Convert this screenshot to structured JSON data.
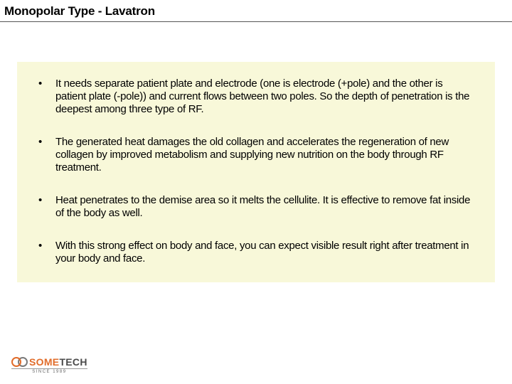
{
  "title": "Monopolar Type - Lavatron",
  "content_box": {
    "background_color": "#f8f8d9"
  },
  "bullets": [
    {
      "text": "It needs separate patient plate and electrode (one is electrode (+pole) and the other is patient plate (-pole)) and current flows between two poles. So the depth of penetration is the deepest among three type of RF."
    },
    {
      "text": "The generated heat damages the old collagen and accelerates the regeneration of new collagen by improved metabolism and supplying new nutrition on the body through RF treatment."
    },
    {
      "text": "Heat penetrates to the demise area so it melts the cellulite. It is effective to remove fat inside of the body as well."
    },
    {
      "text": "With this strong effect on body and face, you can expect visible result right after treatment in your body and face."
    }
  ],
  "logo": {
    "brand_some": "SOME",
    "brand_tech": "TECH",
    "tagline": "SINCE 1989",
    "ring1_color": "#e16c2a",
    "ring2_color": "#7a7a7a",
    "some_color": "#e16c2a",
    "tech_color": "#4a4a4a"
  },
  "colors": {
    "title_color": "#000000",
    "rule_color": "#555555",
    "text_color": "#000000",
    "background": "#ffffff"
  },
  "typography": {
    "title_fontsize": 17,
    "bullet_fontsize": 15,
    "logo_fontsize": 14,
    "tagline_fontsize": 6
  }
}
